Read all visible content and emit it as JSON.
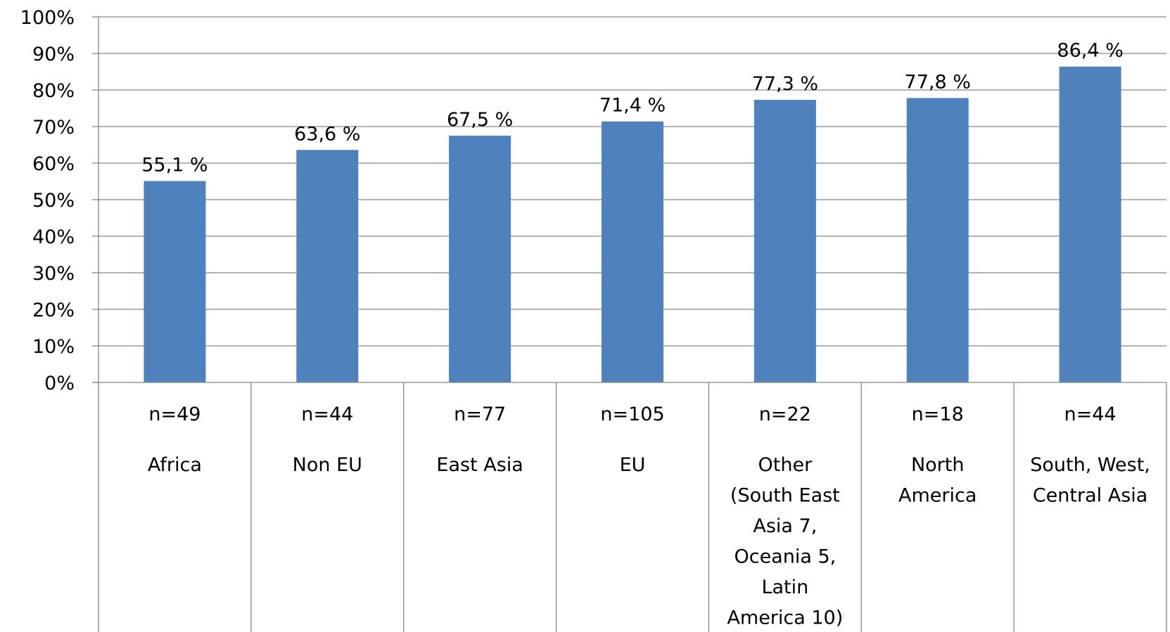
{
  "chart_data": {
    "type": "bar",
    "categories": [
      "Africa",
      "Non EU",
      "East Asia",
      "EU",
      "Other (South East Asia 7, Oceania 5, Latin America 10)",
      "North America",
      "South, West, Central Asia"
    ],
    "category_lines": [
      [
        "Africa"
      ],
      [
        "Non EU"
      ],
      [
        "East Asia"
      ],
      [
        "EU"
      ],
      [
        "Other",
        "(South East",
        "Asia 7,",
        "Oceania 5,",
        "Latin",
        "America 10)"
      ],
      [
        "North",
        "America"
      ],
      [
        "South, West,",
        "Central Asia"
      ]
    ],
    "n_labels": [
      "n=49",
      "n=44",
      "n=77",
      "n=105",
      "n=22",
      "n=18",
      "n=44"
    ],
    "values": [
      55.1,
      63.6,
      67.5,
      71.4,
      77.3,
      77.8,
      86.4
    ],
    "data_labels": [
      "55,1 %",
      "63,6 %",
      "67,5 %",
      "71,4 %",
      "77,3 %",
      "77,8 %",
      "86,4 %"
    ],
    "ylim": [
      0,
      100
    ],
    "yticks": [
      0,
      10,
      20,
      30,
      40,
      50,
      60,
      70,
      80,
      90,
      100
    ],
    "ytick_labels": [
      "0%",
      "10%",
      "20%",
      "30%",
      "40%",
      "50%",
      "60%",
      "70%",
      "80%",
      "90%",
      "100%"
    ],
    "grid": true,
    "bar_color": "#4f81bd",
    "grid_color": "#868686"
  }
}
